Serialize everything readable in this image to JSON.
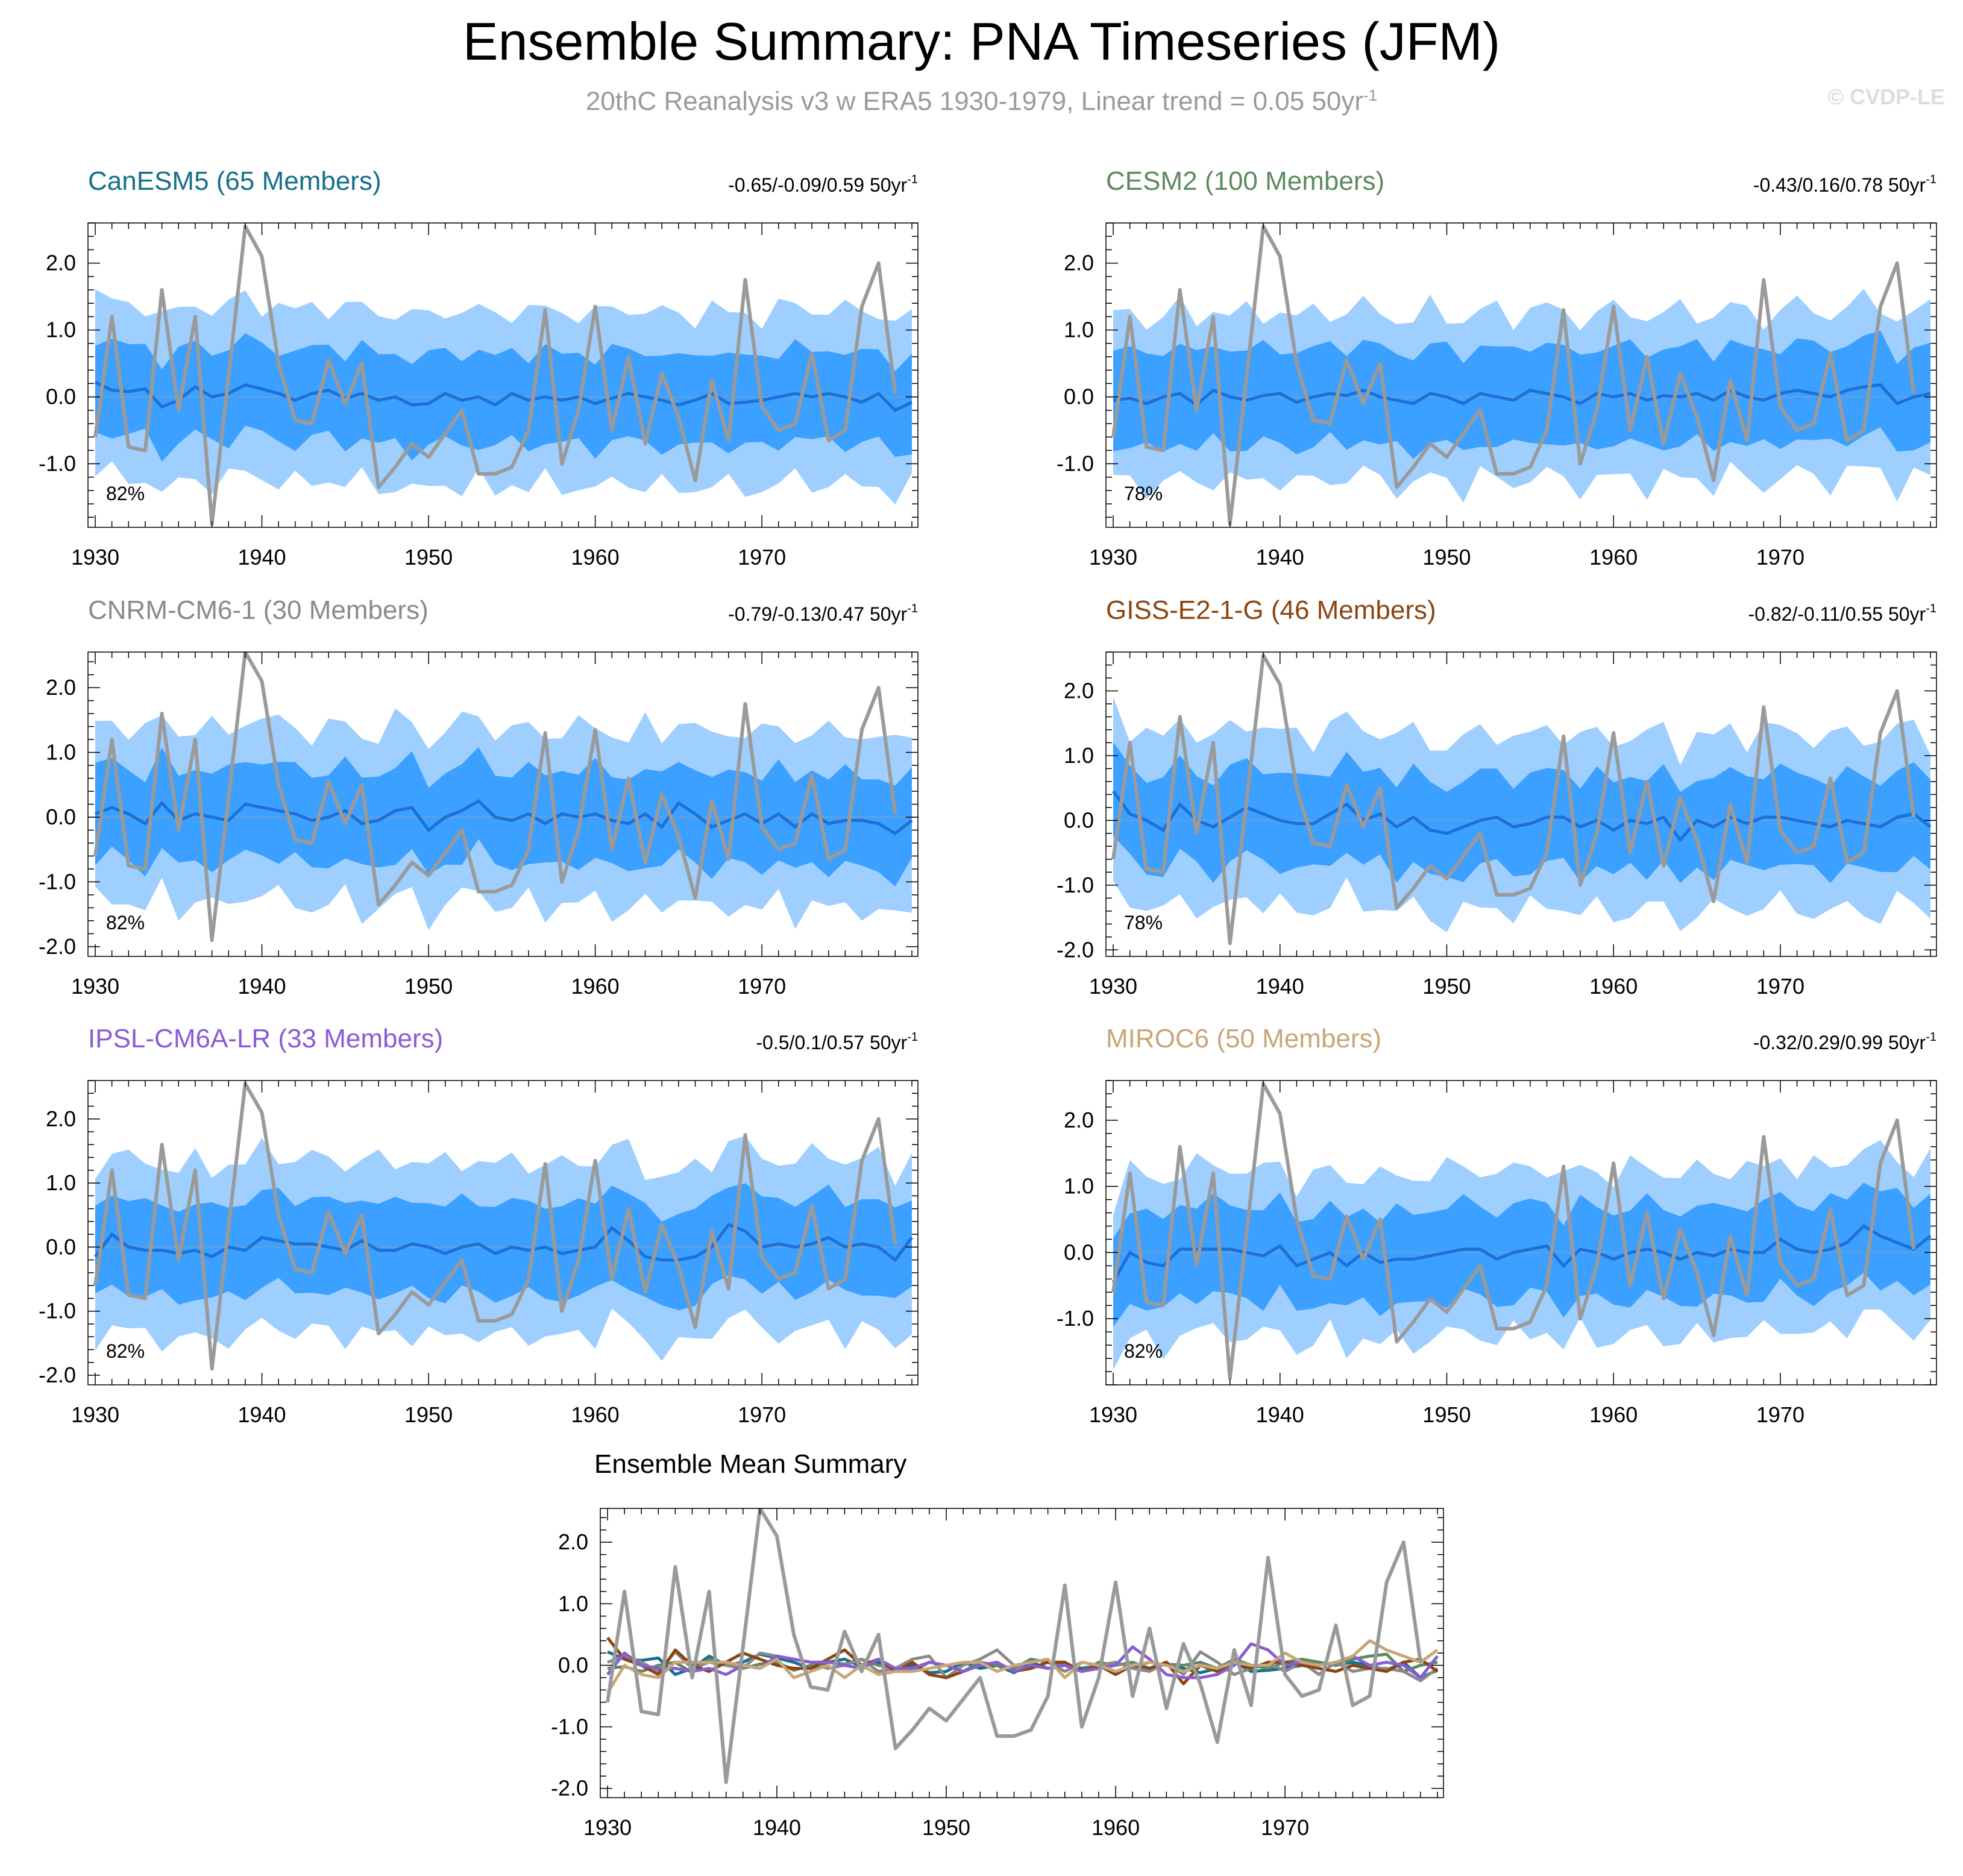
{
  "title": "Ensemble Summary: PNA Timeseries (JFM)",
  "subtitle": "20thC Reanalysis v3 w ERA5 1930-1979, Linear trend = 0.05 50yr",
  "subtitle_sup": "-1",
  "watermark": "© CVDP-LE",
  "colors": {
    "outer_band": "#9fcfff",
    "inner_band": "#3ba0ff",
    "ens_mean": "#1e6fd6",
    "observed": "#9a9a9a"
  },
  "chart_data": [
    {
      "type": "area",
      "name": "CanESM5 (65 Members)",
      "title_color": "#15708a",
      "trend_label": "-0.65/-0.09/0.59 50yr",
      "trend_sup": "-1",
      "pct_label": "82%",
      "xlim": [
        1930,
        1979
      ],
      "ylim": [
        -1.95,
        2.6
      ],
      "xticks": [
        "1930",
        "1940",
        "1950",
        "1960",
        "1970"
      ],
      "yticks": [
        "2.0",
        "1.0",
        "0.0",
        "-1.0"
      ],
      "band_outer_amp": 1.3,
      "band_inner_amp": 0.68,
      "mean": [
        0.22,
        0.1,
        0.08,
        0.12,
        -0.15,
        -0.05,
        0.15,
        0.0,
        0.05,
        0.18,
        0.12,
        0.05,
        -0.05,
        0.05,
        0.1,
        -0.02,
        0.05,
        -0.05,
        0.0,
        -0.12,
        -0.1,
        0.05,
        -0.05,
        0.0,
        -0.12,
        0.05,
        -0.05,
        0.0,
        -0.05,
        0.0,
        -0.1,
        -0.02,
        0.05,
        0.0,
        -0.05,
        -0.12,
        -0.05,
        0.05,
        -0.1,
        -0.08,
        -0.05,
        0.0,
        0.05,
        0.0,
        0.05,
        0.0,
        -0.08,
        0.05,
        -0.2,
        -0.08
      ]
    },
    {
      "type": "area",
      "name": "CESM2 (100 Members)",
      "title_color": "#5d8a5e",
      "trend_label": "-0.43/0.16/0.78 50yr",
      "trend_sup": "-1",
      "pct_label": "78%",
      "xlim": [
        1930,
        1979
      ],
      "ylim": [
        -1.95,
        2.6
      ],
      "xticks": [
        "1930",
        "1940",
        "1950",
        "1960",
        "1970"
      ],
      "yticks": [
        "2.0",
        "1.0",
        "0.0",
        "-1.0"
      ],
      "band_outer_amp": 1.25,
      "band_inner_amp": 0.72,
      "mean": [
        -0.05,
        -0.02,
        -0.1,
        0.0,
        0.05,
        -0.12,
        0.1,
        0.0,
        -0.05,
        0.02,
        0.05,
        -0.08,
        0.0,
        0.05,
        0.02,
        0.1,
        0.0,
        -0.05,
        -0.1,
        0.05,
        0.0,
        -0.1,
        0.05,
        0.0,
        -0.05,
        0.1,
        0.05,
        0.0,
        -0.1,
        0.05,
        0.0,
        0.05,
        -0.05,
        0.02,
        0.0,
        0.05,
        -0.05,
        0.1,
        0.0,
        -0.05,
        0.05,
        0.1,
        0.05,
        0.0,
        0.1,
        0.15,
        0.18,
        -0.1,
        0.0,
        0.05
      ]
    },
    {
      "type": "area",
      "name": "CNRM-CM6-1 (30 Members)",
      "title_color": "#8a8a8a",
      "trend_label": "-0.79/-0.13/0.47 50yr",
      "trend_sup": "-1",
      "pct_label": "82%",
      "xlim": [
        1930,
        1979
      ],
      "ylim": [
        -2.15,
        2.55
      ],
      "xticks": [
        "1930",
        "1940",
        "1950",
        "1960",
        "1970"
      ],
      "yticks": [
        "2.0",
        "1.0",
        "0.0",
        "-1.0",
        "-2.0"
      ],
      "band_outer_amp": 1.35,
      "band_inner_amp": 0.72,
      "mean": [
        0.05,
        0.15,
        0.05,
        -0.1,
        0.22,
        -0.05,
        0.05,
        0.0,
        -0.05,
        0.2,
        0.15,
        0.1,
        0.05,
        -0.05,
        0.0,
        0.1,
        -0.1,
        -0.05,
        0.1,
        0.15,
        -0.2,
        0.0,
        0.1,
        0.25,
        0.0,
        -0.05,
        0.05,
        -0.1,
        0.05,
        0.0,
        0.05,
        -0.05,
        -0.1,
        0.05,
        -0.15,
        0.22,
        0.05,
        -0.15,
        -0.05,
        0.05,
        -0.1,
        0.05,
        -0.15,
        0.05,
        -0.1,
        -0.05,
        -0.05,
        -0.1,
        -0.25,
        -0.05
      ]
    },
    {
      "type": "area",
      "name": "GISS-E2-1-G (46 Members)",
      "title_color": "#8b4513",
      "trend_label": "-0.82/-0.11/0.55 50yr",
      "trend_sup": "-1",
      "pct_label": "78%",
      "xlim": [
        1930,
        1979
      ],
      "ylim": [
        -2.1,
        2.6
      ],
      "xticks": [
        "1930",
        "1940",
        "1950",
        "1960",
        "1970"
      ],
      "yticks": [
        "2.0",
        "1.0",
        "0.0",
        "-1.0",
        "-2.0"
      ],
      "band_outer_amp": 1.35,
      "band_inner_amp": 0.72,
      "mean": [
        0.45,
        0.1,
        0.0,
        -0.15,
        0.25,
        0.0,
        -0.1,
        0.05,
        0.2,
        0.1,
        0.0,
        -0.05,
        -0.05,
        0.1,
        0.25,
        0.0,
        0.1,
        -0.1,
        0.05,
        -0.15,
        -0.2,
        -0.1,
        0.0,
        0.05,
        -0.1,
        -0.05,
        0.05,
        0.05,
        -0.1,
        0.0,
        -0.15,
        0.0,
        -0.05,
        0.05,
        -0.3,
        0.0,
        -0.1,
        0.05,
        -0.05,
        0.05,
        0.05,
        0.0,
        -0.05,
        -0.1,
        0.0,
        -0.05,
        -0.1,
        0.05,
        0.1,
        -0.1
      ]
    },
    {
      "type": "area",
      "name": "IPSL-CM6A-LR (33 Members)",
      "title_color": "#8a5cd6",
      "trend_label": "-0.5/0.1/0.57 50yr",
      "trend_sup": "-1",
      "pct_label": "82%",
      "xlim": [
        1930,
        1979
      ],
      "ylim": [
        -2.15,
        2.6
      ],
      "xticks": [
        "1930",
        "1940",
        "1950",
        "1960",
        "1970"
      ],
      "yticks": [
        "2.0",
        "1.0",
        "0.0",
        "-1.0",
        "-2.0"
      ],
      "band_outer_amp": 1.35,
      "band_inner_amp": 0.72,
      "mean": [
        -0.15,
        0.2,
        0.0,
        -0.05,
        -0.05,
        -0.1,
        -0.05,
        -0.15,
        0.0,
        -0.05,
        0.15,
        0.1,
        0.05,
        0.05,
        0.0,
        -0.05,
        0.1,
        -0.05,
        -0.05,
        0.05,
        0.0,
        -0.1,
        0.0,
        0.05,
        -0.1,
        0.0,
        -0.05,
        0.0,
        -0.1,
        -0.05,
        0.0,
        0.3,
        0.1,
        -0.15,
        -0.2,
        -0.2,
        -0.15,
        0.0,
        0.35,
        0.25,
        0.0,
        0.05,
        0.0,
        0.05,
        0.15,
        0.0,
        0.05,
        0.0,
        -0.2,
        0.15
      ]
    },
    {
      "type": "area",
      "name": "MIROC6 (50 Members)",
      "title_color": "#c9a679",
      "trend_label": "-0.32/0.29/0.99 50yr",
      "trend_sup": "-1",
      "pct_label": "82%",
      "xlim": [
        1930,
        1979
      ],
      "ylim": [
        -2.0,
        2.6
      ],
      "xticks": [
        "1930",
        "1940",
        "1950",
        "1960",
        "1970"
      ],
      "yticks": [
        "2.0",
        "1.0",
        "0.0",
        "-1.0"
      ],
      "band_outer_amp": 1.25,
      "band_inner_amp": 0.7,
      "mean": [
        -0.45,
        0.0,
        -0.15,
        -0.2,
        0.05,
        0.05,
        0.05,
        0.05,
        0.0,
        -0.05,
        0.1,
        -0.2,
        -0.1,
        0.0,
        -0.2,
        0.0,
        -0.15,
        -0.1,
        -0.1,
        -0.05,
        0.0,
        0.05,
        0.05,
        -0.1,
        0.0,
        0.05,
        0.1,
        -0.2,
        0.05,
        0.0,
        -0.1,
        0.0,
        0.05,
        0.0,
        -0.1,
        0.0,
        -0.05,
        0.05,
        0.0,
        0.0,
        0.2,
        0.05,
        0.0,
        0.05,
        0.15,
        0.4,
        0.25,
        0.15,
        0.05,
        0.25
      ]
    },
    {
      "type": "line",
      "name": "Ensemble Mean Summary",
      "xlim": [
        1930,
        1979
      ],
      "ylim": [
        -2.15,
        2.55
      ],
      "xticks": [
        "1930",
        "1940",
        "1950",
        "1960",
        "1970"
      ],
      "yticks": [
        "2.0",
        "1.0",
        "0.0",
        "-1.0",
        "-2.0"
      ],
      "series": [
        {
          "color": "#15708a",
          "ref": 0
        },
        {
          "color": "#5d8a5e",
          "ref": 1
        },
        {
          "color": "#8a8a8a",
          "ref": 2
        },
        {
          "color": "#8b4513",
          "ref": 3
        },
        {
          "color": "#8a5cd6",
          "ref": 4
        },
        {
          "color": "#c9a679",
          "ref": 5
        },
        {
          "color": "#9a9a9a",
          "ref": "observed"
        }
      ]
    }
  ],
  "observed": {
    "x_start": 1930,
    "values": [
      -0.6,
      1.2,
      -0.75,
      -0.8,
      1.6,
      -0.2,
      1.2,
      -1.9,
      0.3,
      2.55,
      2.1,
      0.5,
      -0.35,
      -0.4,
      0.55,
      -0.1,
      0.5,
      -1.35,
      -1.05,
      -0.7,
      -0.9,
      -0.55,
      -0.2,
      -1.15,
      -1.15,
      -1.05,
      -0.5,
      1.3,
      -1.0,
      -0.2,
      1.35,
      -0.5,
      0.6,
      -0.7,
      0.35,
      -0.3,
      -1.25,
      0.25,
      -0.65,
      1.75,
      -0.15,
      -0.5,
      -0.4,
      0.65,
      -0.65,
      -0.5,
      1.35,
      2.0,
      0.05
    ]
  }
}
